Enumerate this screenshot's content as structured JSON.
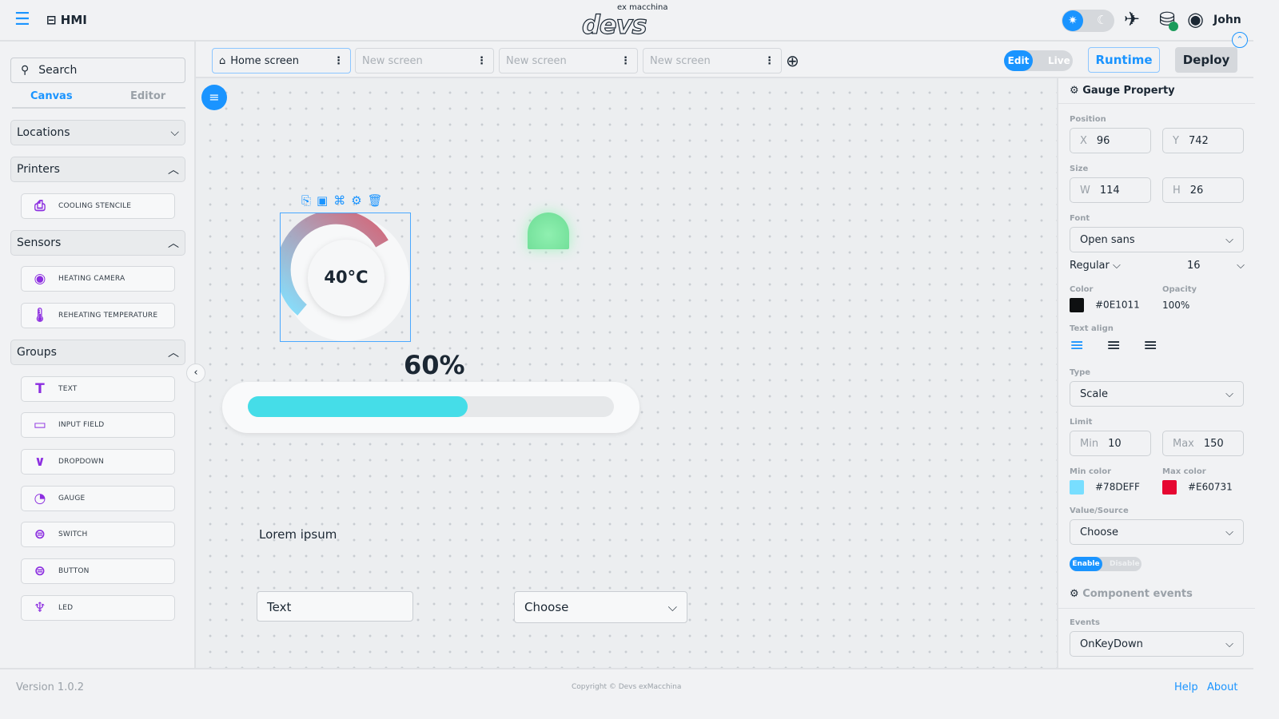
{
  "header": {
    "app_name": "HMI",
    "logo_tagline": "ex macchina",
    "logo": "devs",
    "user": "John",
    "theme": "light"
  },
  "toolbar": {
    "tabs": [
      {
        "label": "Home screen",
        "active": true
      },
      {
        "label": "New screen"
      },
      {
        "label": "New screen"
      },
      {
        "label": "New screen"
      }
    ],
    "mode_edit": "Edit",
    "mode_live": "Live",
    "runtime": "Runtime",
    "deploy": "Deploy"
  },
  "sidebar": {
    "search_placeholder": "Search",
    "tab_canvas": "Canvas",
    "tab_editor": "Editor",
    "sections": {
      "locations": "Locations",
      "printers": "Printers",
      "sensors": "Sensors",
      "groups": "Groups"
    },
    "printers": [
      "COOLING STENCILE"
    ],
    "sensors": [
      "HEATING CAMERA",
      "REHEATING TEMPERATURE"
    ],
    "groups": [
      "TEXT",
      "INPUT FIELD",
      "DROPDOWN",
      "GAUGE",
      "SWITCH",
      "BUTTON",
      "LED"
    ]
  },
  "canvas": {
    "gauge_value": "40°C",
    "progress_label": "60%",
    "progress": 60,
    "text_label": "Lorem ipsum",
    "input_value": "Text",
    "dropdown_value": "Choose"
  },
  "panel": {
    "title": "Gauge Property",
    "position_label": "Position",
    "x": "96",
    "y": "742",
    "size_label": "Size",
    "w": "114",
    "h": "26",
    "font_label": "Font",
    "font": "Open sans",
    "weight": "Regular",
    "font_size": "16",
    "color_label": "Color",
    "color": "#0E1011",
    "opacity_label": "Opacity",
    "opacity": "100%",
    "text_align_label": "Text align",
    "type_label": "Type",
    "type": "Scale",
    "limit_label": "Limit",
    "min": "10",
    "max": "150",
    "min_key": "Min",
    "max_key": "Max",
    "min_color_label": "Min color",
    "min_color": "#78DEFF",
    "max_color_label": "Max color",
    "max_color": "#E60731",
    "source_label": "Value/Source",
    "source": "Choose",
    "enable": "Enable",
    "disable": "Disable",
    "events_title": "Component events",
    "events_label": "Events",
    "event": "OnKeyDown"
  },
  "footer": {
    "version": "Version 1.0.2",
    "copyright": "Copyright © Devs exMacchina",
    "help": "Help",
    "about": "About"
  },
  "colors": {
    "accent": "#1a94ff",
    "purple": "#8c2ee0",
    "progress": "#45dde8"
  }
}
